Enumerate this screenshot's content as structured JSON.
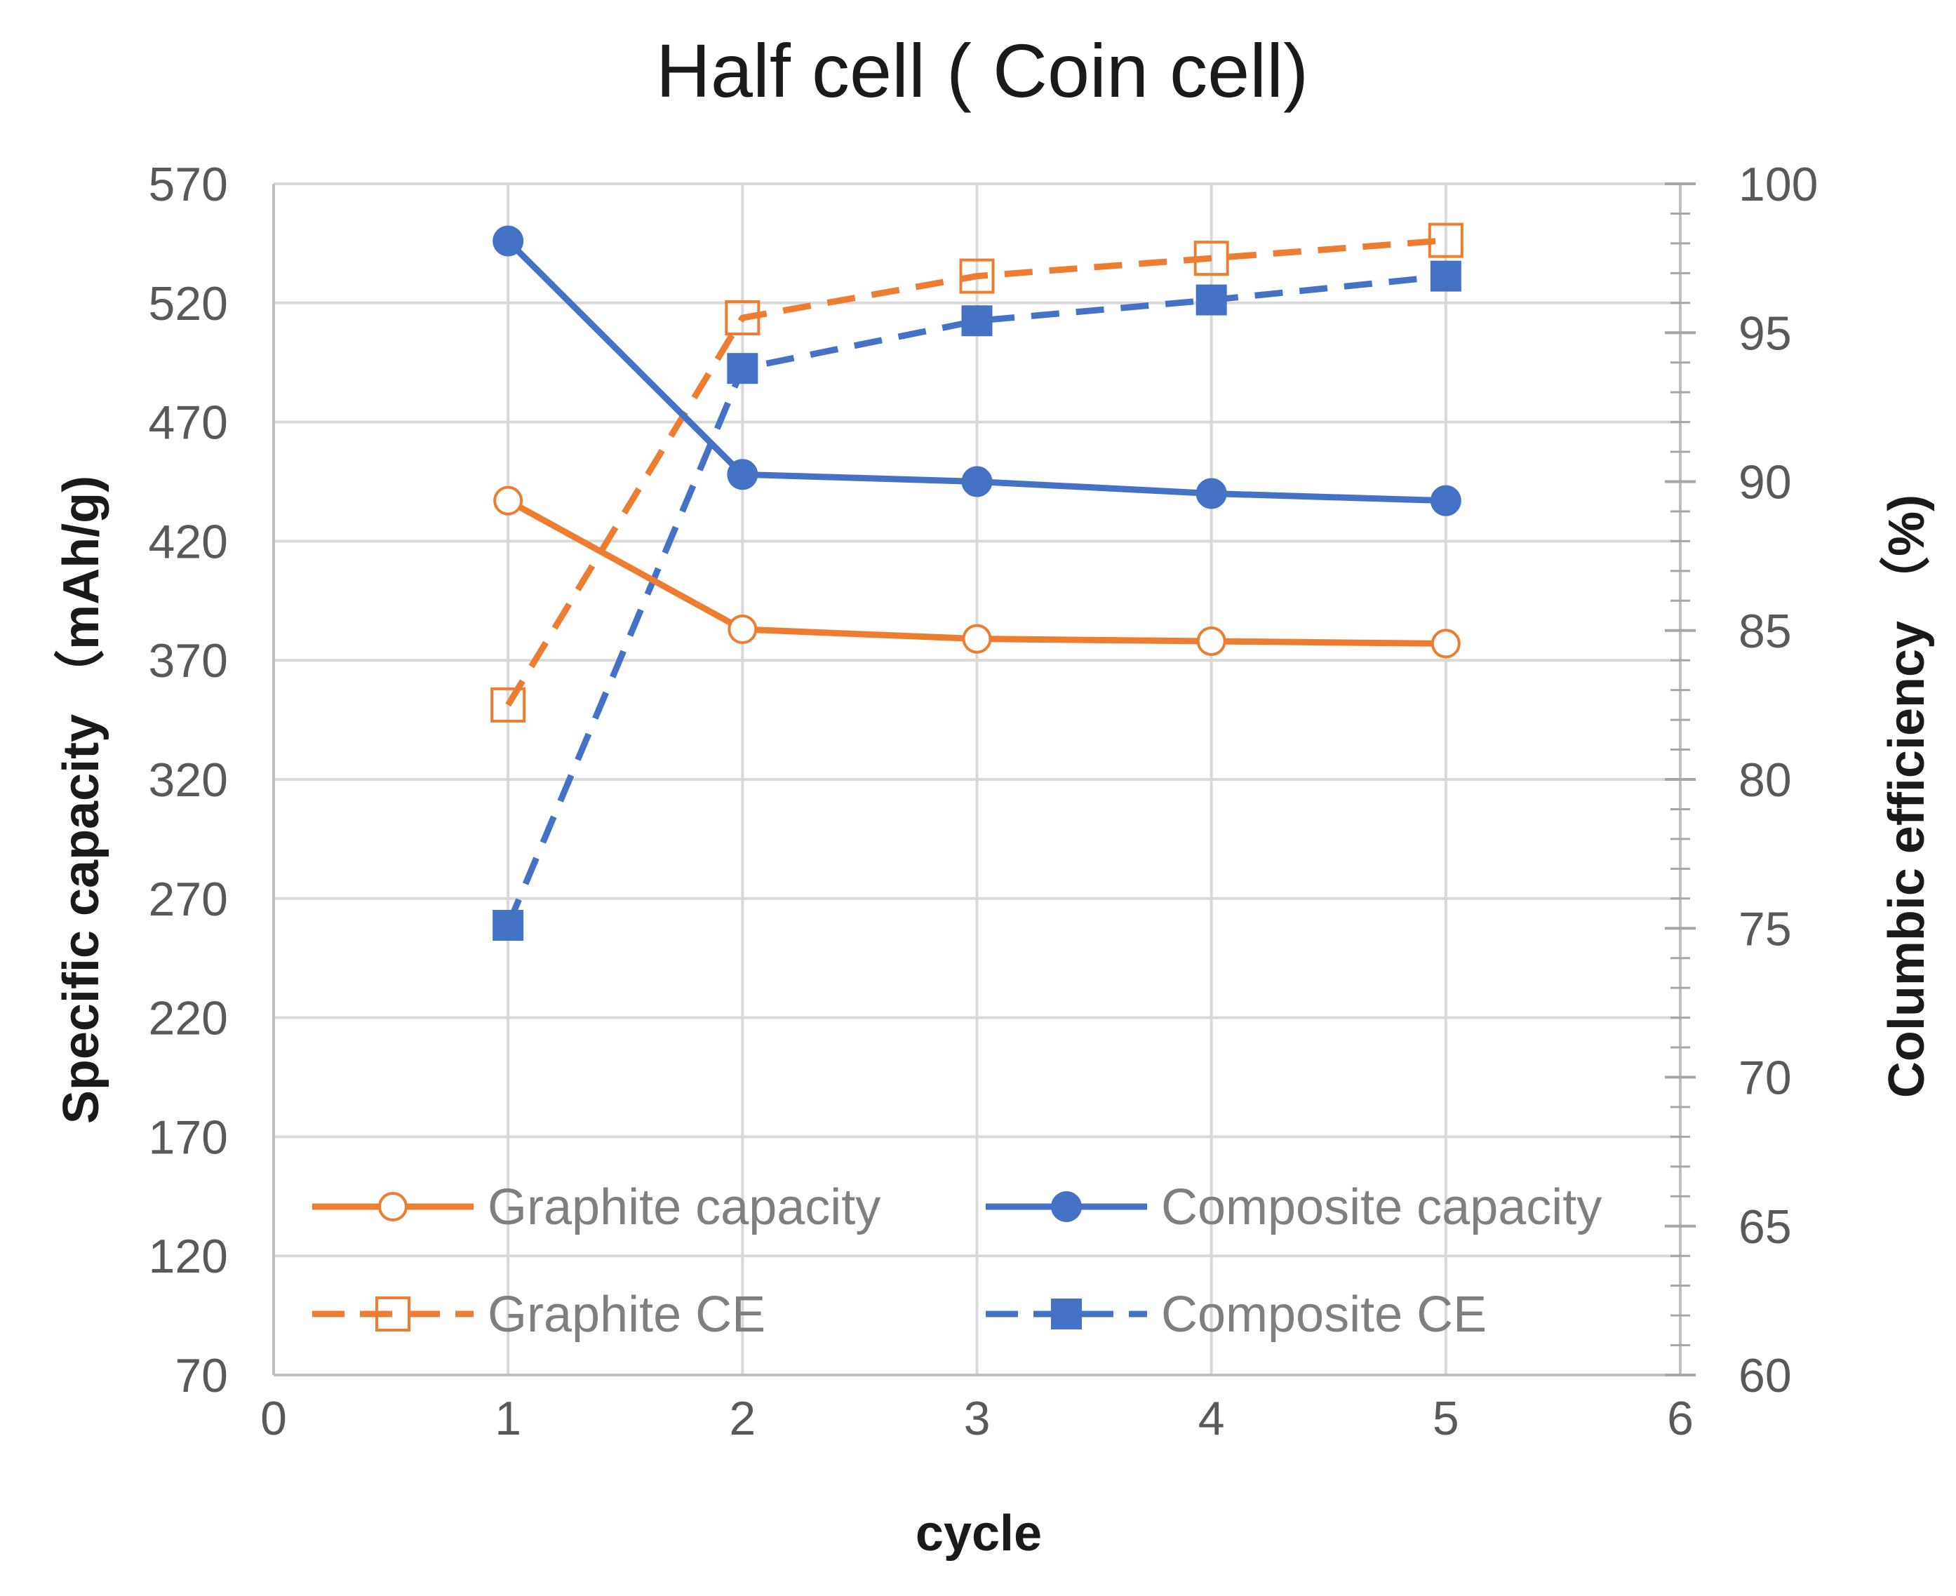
{
  "chart_data": {
    "type": "line",
    "title": "Half cell ( Coin cell)",
    "xlabel": "cycle",
    "ylabel": "Specific capacity （mAh/g)",
    "y2label": "Columbic efficiency （%)",
    "xlim": [
      0,
      6
    ],
    "ylim": [
      70,
      570
    ],
    "y2lim": [
      60,
      100
    ],
    "x_ticks": [
      0,
      1,
      2,
      3,
      4,
      5,
      6
    ],
    "y_ticks": [
      70,
      120,
      170,
      220,
      270,
      320,
      370,
      420,
      470,
      520,
      570
    ],
    "y2_ticks": [
      60,
      65,
      70,
      75,
      80,
      85,
      90,
      95,
      100
    ],
    "grid": true,
    "legend_position": "bottom-inside",
    "x": [
      1,
      2,
      3,
      4,
      5
    ],
    "series": [
      {
        "name": "Graphite capacity",
        "axis": "left",
        "values": [
          437,
          383,
          379,
          378,
          377
        ],
        "color": "#ED7D31",
        "dash": false,
        "marker": "open-circle"
      },
      {
        "name": "Composite capacity",
        "axis": "left",
        "values": [
          546,
          448,
          445,
          440,
          437
        ],
        "color": "#4472C4",
        "dash": false,
        "marker": "filled-circle"
      },
      {
        "name": "Graphite CE",
        "axis": "right",
        "values": [
          82.5,
          95.5,
          96.9,
          97.5,
          98.1
        ],
        "color": "#ED7D31",
        "dash": true,
        "marker": "open-square"
      },
      {
        "name": "Composite CE",
        "axis": "right",
        "values": [
          75.1,
          93.8,
          95.4,
          96.1,
          96.9
        ],
        "color": "#4472C4",
        "dash": true,
        "marker": "filled-square"
      }
    ]
  }
}
